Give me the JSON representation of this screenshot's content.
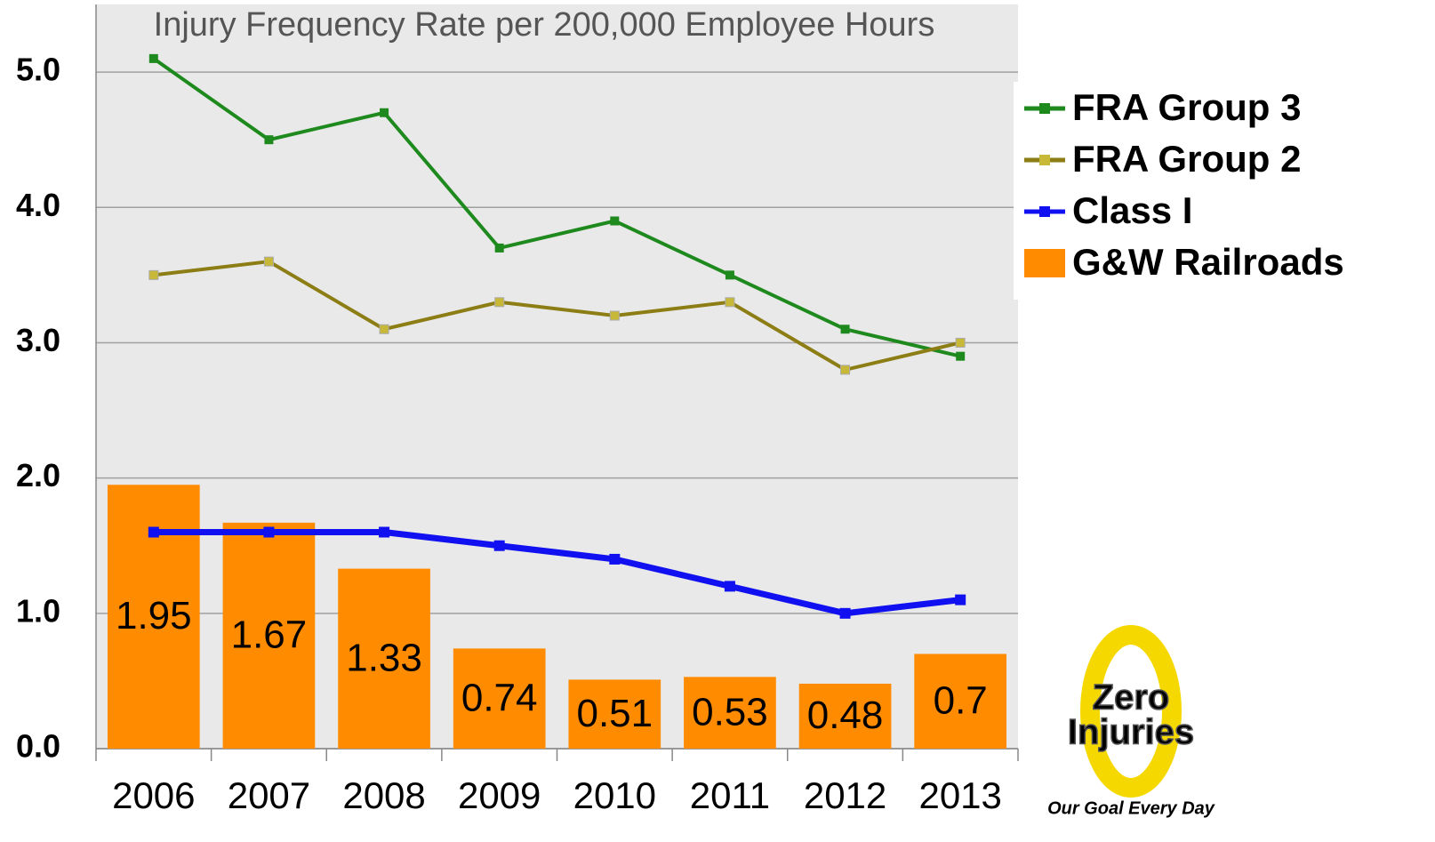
{
  "chart_data": {
    "type": "combo",
    "title": "Injury Frequency Rate per 200,000 Employee Hours",
    "categories": [
      "2006",
      "2007",
      "2008",
      "2009",
      "2010",
      "2011",
      "2012",
      "2013"
    ],
    "series": [
      {
        "name": "FRA Group 3",
        "type": "line",
        "color": "#1e8a1e",
        "values": [
          5.1,
          4.5,
          4.7,
          3.7,
          3.9,
          3.5,
          3.1,
          2.9
        ]
      },
      {
        "name": "FRA Group 2",
        "type": "line",
        "color": "#8c7d14",
        "values": [
          3.5,
          3.6,
          3.1,
          3.3,
          3.2,
          3.3,
          2.8,
          3.0
        ]
      },
      {
        "name": "Class I",
        "type": "line",
        "color": "#1010f0",
        "values": [
          1.6,
          1.6,
          1.6,
          1.5,
          1.4,
          1.2,
          1.0,
          1.1
        ]
      },
      {
        "name": "G&W Railroads",
        "type": "bar",
        "color": "#ff8c00",
        "values": [
          1.95,
          1.67,
          1.33,
          0.74,
          0.51,
          0.53,
          0.48,
          0.7
        ]
      }
    ],
    "ylim": [
      0,
      5.5
    ],
    "yticks": [
      {
        "value": 0,
        "label": "0.0"
      },
      {
        "value": 1,
        "label": "1.0"
      },
      {
        "value": 2,
        "label": "2.0"
      },
      {
        "value": 3,
        "label": "3.0"
      },
      {
        "value": 4,
        "label": "4.0"
      },
      {
        "value": 5,
        "label": "5.0"
      }
    ],
    "grid": true,
    "legend": "right"
  },
  "logo": {
    "line1": "Zero",
    "line2": "Injuries",
    "tagline": "Our Goal Every Day"
  }
}
